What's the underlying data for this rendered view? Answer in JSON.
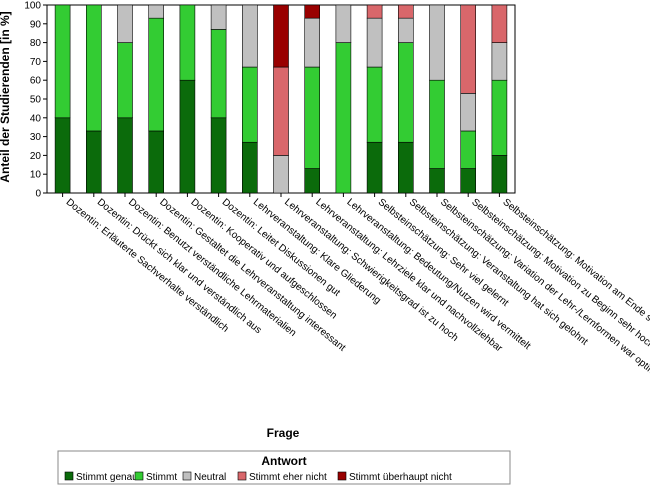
{
  "chart_data": {
    "type": "bar",
    "stacked": true,
    "xlabel": "Frage",
    "ylabel": "Anteil der Studierenden [in %]",
    "ylim": [
      0,
      100
    ],
    "yticks": [
      0,
      10,
      20,
      30,
      40,
      50,
      60,
      70,
      80,
      90,
      100
    ],
    "grid": false,
    "legend_title": "Antwort",
    "legend_position": "bottom",
    "categories": [
      "Dozentin: Erläuterte Sachverhalte verständlich",
      "Dozentin: Drückt sich klar und verständlich aus",
      "Dozentin: Benutzt verständliche Lehrmaterialien",
      "Dozentin: Gestaltet die Lehrveranstaltung interessant",
      "Dozentin: Kooperativ und aufgeschlossen",
      "Dozentin: Leitet Diskussionen gut",
      "Lehrveranstaltung: Klare Gliederung",
      "Lehrveranstaltung: Schwierigkeitsgrad ist zu hoch",
      "Lehrveranstaltung: Lehrziele klar und nachvollziehbar",
      "Lehrveranstaltung: Bedeutung/Nutzen wird vermittelt",
      "Selbsteinschätzung: Sehr viel gelernt",
      "Selbsteinschätzung: Veranstaltung hat sich gelohnt",
      "Selbsteinschätzung: Variation der Lehr-/Lernformen war optimal",
      "Selbsteinschätzung: Motivation zu Beginn sehr hoch",
      "Selbsteinschätzung: Motivation am Ende sehr hoch"
    ],
    "series": [
      {
        "name": "Stimmt genau",
        "color": "#0b6b0b",
        "values": [
          40,
          33,
          40,
          33,
          60,
          40,
          27,
          0,
          13,
          0,
          27,
          27,
          13,
          13,
          20
        ]
      },
      {
        "name": "Stimmt",
        "color": "#33cc33",
        "values": [
          60,
          67,
          40,
          60,
          40,
          47,
          40,
          0,
          54,
          80,
          40,
          53,
          47,
          20,
          40
        ]
      },
      {
        "name": "Neutral",
        "color": "#c0c0c0",
        "values": [
          0,
          0,
          20,
          7,
          0,
          13,
          33,
          20,
          26,
          20,
          26,
          13,
          40,
          20,
          20
        ]
      },
      {
        "name": "Stimmt eher nicht",
        "color": "#d9676b",
        "values": [
          0,
          0,
          0,
          0,
          0,
          0,
          0,
          47,
          0,
          0,
          7,
          7,
          0,
          47,
          20
        ]
      },
      {
        "name": "Stimmt überhaupt nicht",
        "color": "#990000",
        "values": [
          0,
          0,
          0,
          0,
          0,
          0,
          0,
          33,
          7,
          0,
          0,
          0,
          0,
          0,
          0
        ]
      }
    ]
  }
}
